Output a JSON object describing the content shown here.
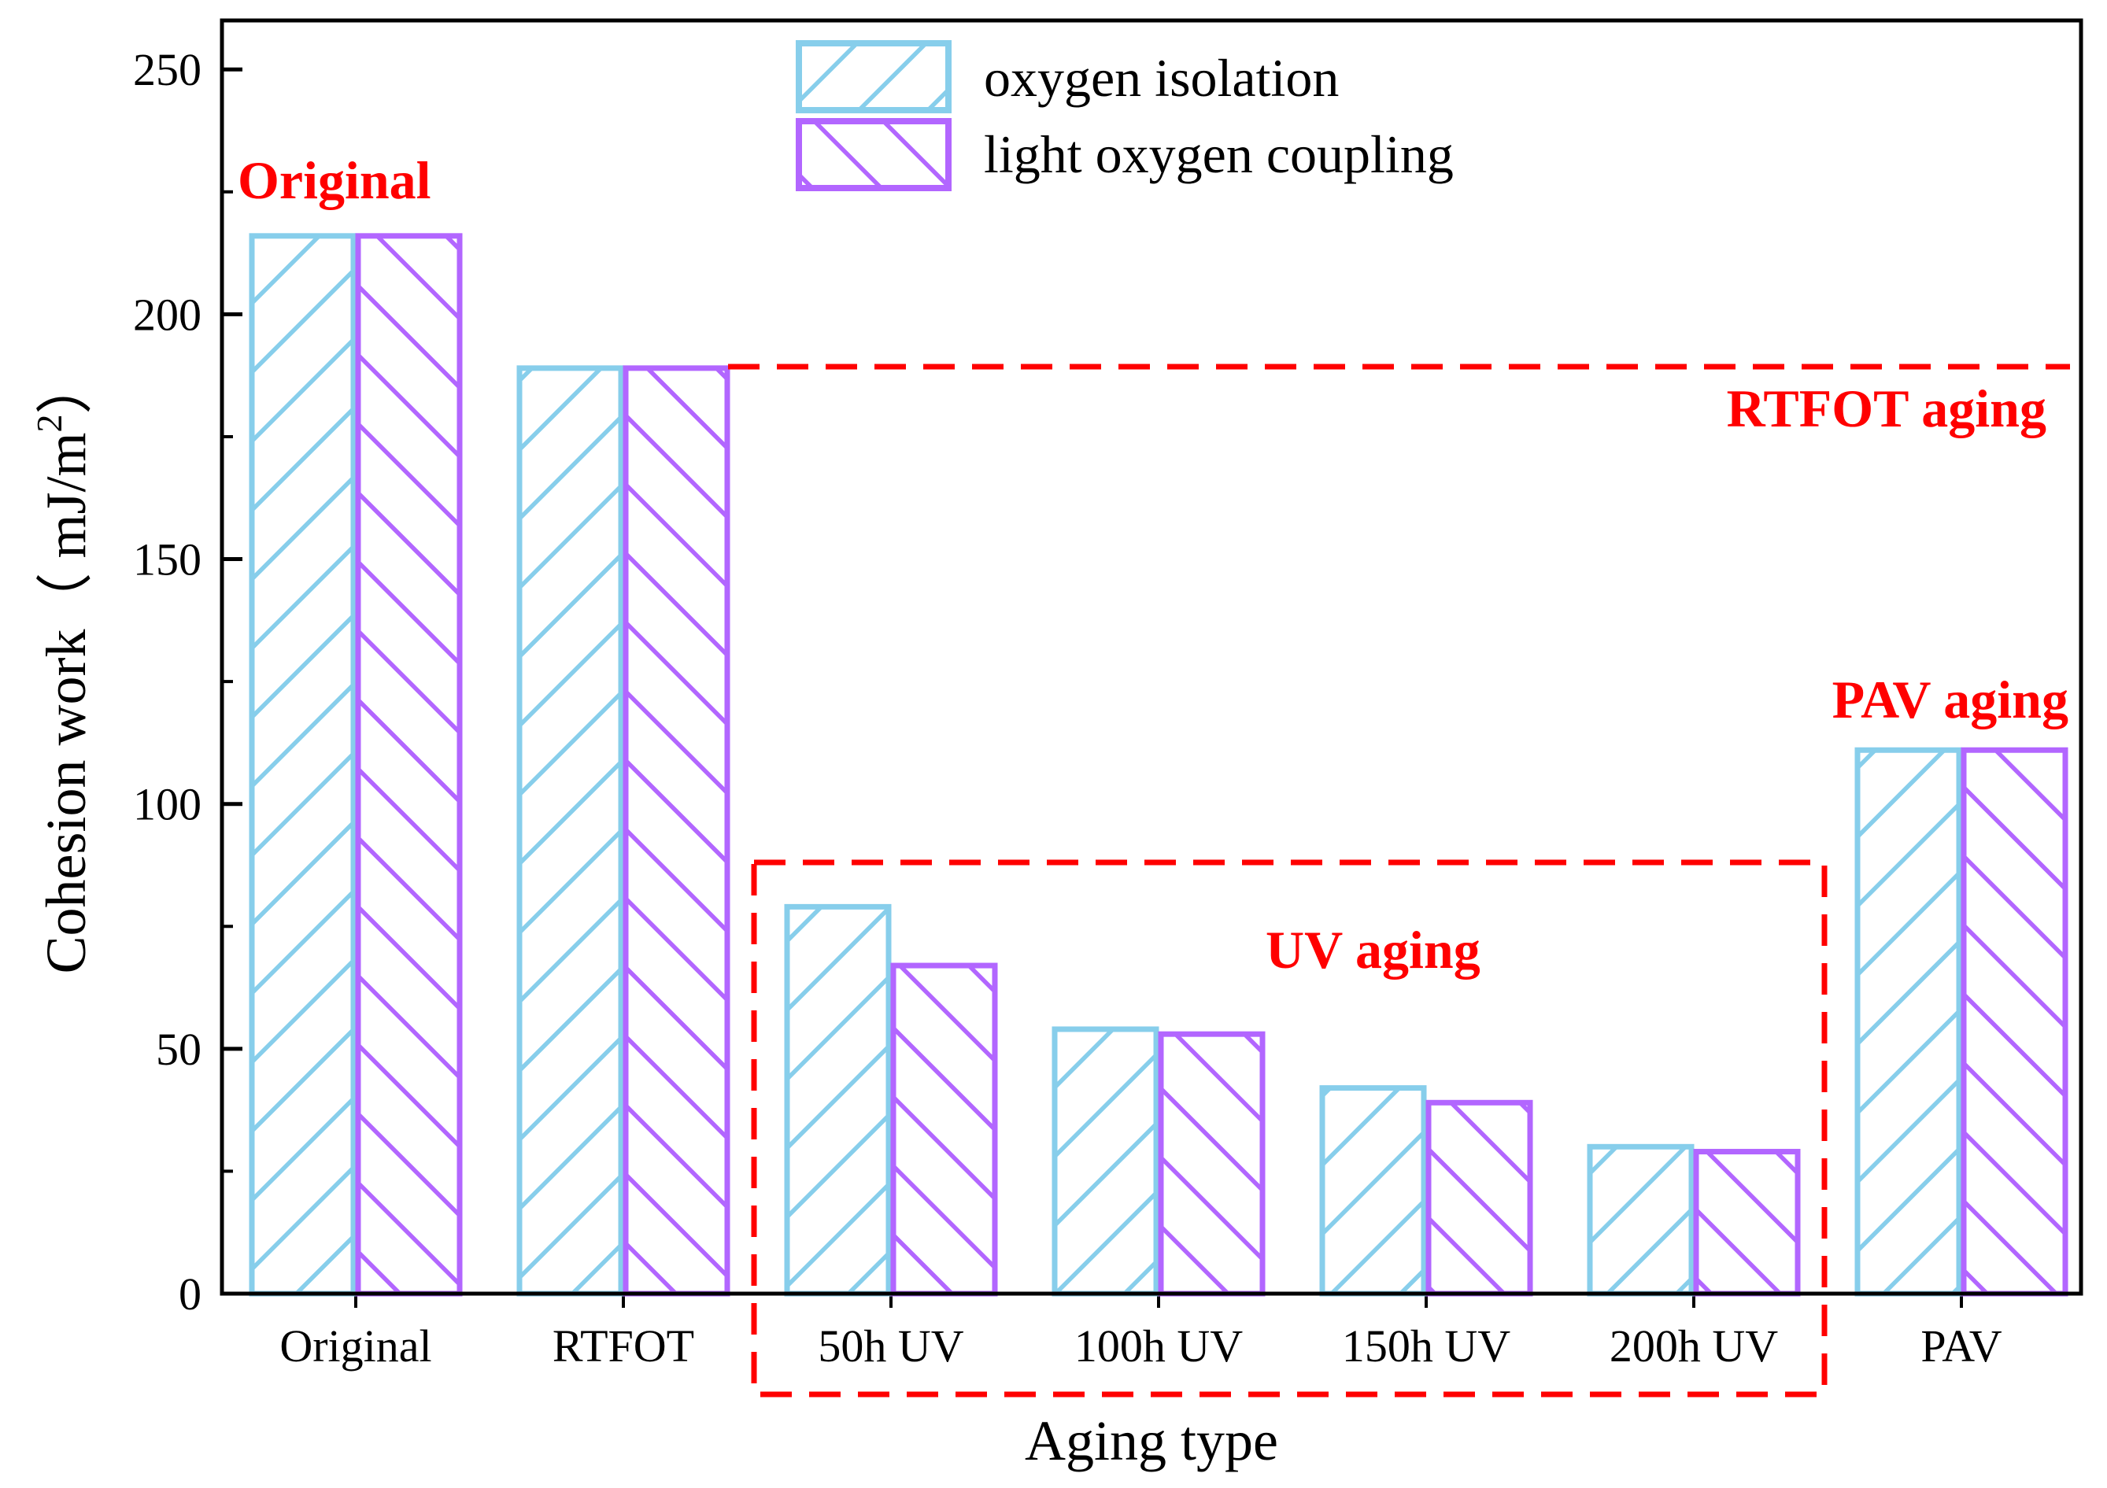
{
  "chart_data": {
    "type": "bar",
    "title": "",
    "xlabel": "Aging type",
    "ylabel": "Cohesion work（ mJ/m",
    "ylabel_sup": "2",
    "ylabel_close": "）",
    "ylim": [
      0,
      260
    ],
    "yticks": [
      0,
      50,
      100,
      150,
      200,
      250
    ],
    "categories": [
      "Original",
      "RTFOT",
      "50h UV",
      "100h UV",
      "150h UV",
      "200h UV",
      "PAV"
    ],
    "series": [
      {
        "name": "oxygen isolation",
        "color": "#87ceeb",
        "hatch": "forward",
        "values": [
          216,
          189,
          79,
          54,
          42,
          30,
          111
        ]
      },
      {
        "name": "light oxygen coupling",
        "color": "#b266ff",
        "hatch": "backward",
        "values": [
          216,
          189,
          67,
          53,
          39,
          29,
          111
        ]
      }
    ],
    "legend": "top-center",
    "annotations": [
      {
        "id": "original",
        "text": "Original"
      },
      {
        "id": "rtfot",
        "text": "RTFOT aging"
      },
      {
        "id": "uv",
        "text": "UV aging"
      },
      {
        "id": "pav",
        "text": "PAV aging"
      }
    ],
    "annotation_color": "#ff0000"
  }
}
